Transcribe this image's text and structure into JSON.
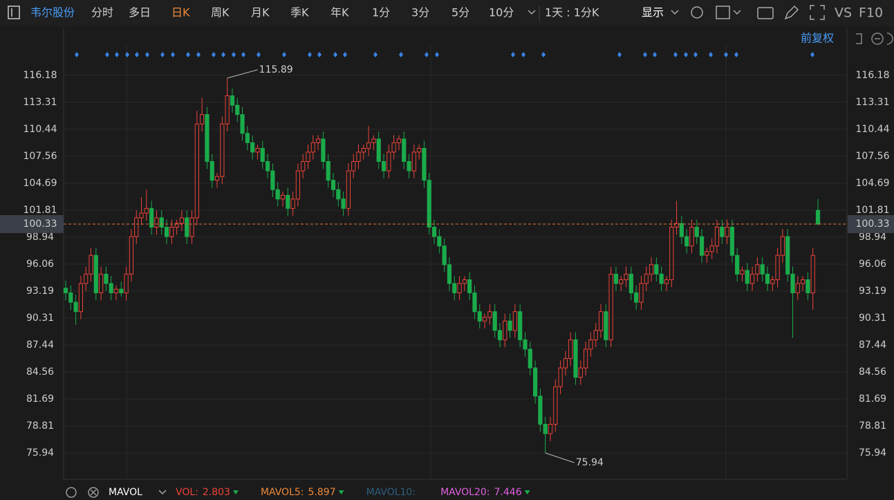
{
  "toolbar": {
    "stock_name": "韦尔股份",
    "tabs": [
      "分时",
      "多日",
      "日K",
      "周K",
      "月K",
      "季K",
      "年K",
      "1分",
      "3分",
      "5分",
      "10分"
    ],
    "active_tab": "日K",
    "period": "1天 : 1分K",
    "display": "显示",
    "vs": "VS",
    "f10": "F10",
    "adjust": "前复权"
  },
  "chart_data": {
    "type": "candlestick",
    "up_color": "#f0433a",
    "down_color": "#1aab4b",
    "ylim": [
      73.14,
      121.26
    ],
    "yticks": [
      75.94,
      78.81,
      81.69,
      84.56,
      87.44,
      90.31,
      93.19,
      96.06,
      98.94,
      101.81,
      104.69,
      107.56,
      110.44,
      113.31,
      116.18
    ],
    "last_price": 100.33,
    "max_label": 115.89,
    "min_label": 75.94,
    "ohlc": [
      [
        93.5,
        94.3,
        92.2,
        93
      ],
      [
        93,
        93.8,
        91.2,
        92
      ],
      [
        92,
        92.8,
        89.6,
        91
      ],
      [
        91,
        94.8,
        90.2,
        94
      ],
      [
        94,
        95.8,
        93.2,
        95
      ],
      [
        95,
        97.8,
        94.2,
        97
      ],
      [
        97,
        97.8,
        92.2,
        93
      ],
      [
        93,
        95.8,
        92.2,
        95
      ],
      [
        95,
        95.8,
        93.2,
        94
      ],
      [
        94,
        94.8,
        92.2,
        93
      ],
      [
        93,
        93.8,
        92.2,
        93.4
      ],
      [
        93.4,
        94.2,
        92.6,
        93
      ],
      [
        93,
        95.8,
        92.2,
        95
      ],
      [
        95,
        99.8,
        94.2,
        99
      ],
      [
        99,
        101.8,
        98.2,
        101
      ],
      [
        101,
        103.2,
        100.2,
        101.5
      ],
      [
        101.5,
        104,
        100.7,
        102
      ],
      [
        102,
        102.8,
        99.2,
        100
      ],
      [
        100,
        101.8,
        99.2,
        101
      ],
      [
        101,
        101.8,
        99.2,
        100
      ],
      [
        100,
        100.8,
        98.2,
        99
      ],
      [
        99,
        100.8,
        98.2,
        100
      ],
      [
        100,
        100.8,
        99.2,
        100.4
      ],
      [
        100.4,
        101.8,
        99.6,
        101
      ],
      [
        101,
        101.8,
        98.2,
        99
      ],
      [
        99,
        101.8,
        98.2,
        101
      ],
      [
        101,
        112.4,
        100.2,
        111
      ],
      [
        111,
        113.8,
        110.2,
        112
      ],
      [
        112,
        112.8,
        106.2,
        107
      ],
      [
        107,
        107.8,
        104.2,
        105
      ],
      [
        105,
        105.8,
        104.2,
        105.4
      ],
      [
        105.4,
        111.8,
        104.6,
        111
      ],
      [
        111,
        115.89,
        110.2,
        114
      ],
      [
        114,
        114.8,
        112.2,
        113
      ],
      [
        113,
        113.8,
        111.2,
        112
      ],
      [
        112,
        112.8,
        109.2,
        110
      ],
      [
        110,
        110.8,
        108.2,
        109
      ],
      [
        109,
        109.8,
        107.2,
        108
      ],
      [
        108,
        108.8,
        107.2,
        108.4
      ],
      [
        108.4,
        109.2,
        106.2,
        107
      ],
      [
        107,
        107.8,
        105.2,
        106
      ],
      [
        106,
        106.8,
        103.2,
        104
      ],
      [
        104,
        104.8,
        102.2,
        103
      ],
      [
        103,
        103.8,
        102.2,
        103.4
      ],
      [
        103.4,
        104.2,
        101.2,
        102
      ],
      [
        102,
        103.8,
        101.2,
        103
      ],
      [
        103,
        106.8,
        102.2,
        106
      ],
      [
        106,
        107.8,
        105.2,
        107
      ],
      [
        107,
        108.8,
        106.2,
        108
      ],
      [
        108,
        109.8,
        107.2,
        109
      ],
      [
        109,
        109.8,
        108.2,
        109.4
      ],
      [
        109.4,
        110.2,
        106.2,
        107
      ],
      [
        107,
        107.8,
        104.2,
        105
      ],
      [
        105,
        105.8,
        103.2,
        104
      ],
      [
        104,
        104.8,
        102.2,
        103
      ],
      [
        103,
        103.8,
        101.2,
        102
      ],
      [
        102,
        106.8,
        101.2,
        106
      ],
      [
        106,
        107.8,
        105.2,
        107
      ],
      [
        107,
        108.8,
        106.2,
        108
      ],
      [
        108,
        108.8,
        107.2,
        108.4
      ],
      [
        108.4,
        110.8,
        107.6,
        109
      ],
      [
        109,
        109.8,
        108.2,
        109.4
      ],
      [
        109.4,
        110.2,
        106.2,
        107
      ],
      [
        107,
        107.8,
        105.2,
        106
      ],
      [
        106,
        108.8,
        105.2,
        108
      ],
      [
        108,
        109.8,
        107.2,
        109
      ],
      [
        109,
        109.8,
        108.2,
        109.4
      ],
      [
        109.4,
        110.2,
        106.2,
        107
      ],
      [
        107,
        107.8,
        105.2,
        106
      ],
      [
        106,
        108.8,
        105.2,
        108
      ],
      [
        108,
        108.8,
        107.2,
        108.4
      ],
      [
        108.4,
        109.2,
        104.2,
        105
      ],
      [
        105,
        105.8,
        99.2,
        100
      ],
      [
        100,
        100.8,
        98.2,
        99
      ],
      [
        99,
        99.8,
        97.2,
        98
      ],
      [
        98,
        98.8,
        95.2,
        96
      ],
      [
        96,
        96.8,
        93.2,
        94
      ],
      [
        94,
        94.8,
        92.2,
        93
      ],
      [
        93,
        94.8,
        92.2,
        94
      ],
      [
        94,
        94.8,
        93.2,
        94.4
      ],
      [
        94.4,
        95.2,
        92.2,
        93
      ],
      [
        93,
        93.8,
        90.2,
        91
      ],
      [
        91,
        91.8,
        89.2,
        90
      ],
      [
        90,
        90.8,
        89.2,
        90.4
      ],
      [
        90.4,
        91.8,
        89.6,
        91
      ],
      [
        91,
        91.8,
        88.2,
        89
      ],
      [
        89,
        89.8,
        87.2,
        88
      ],
      [
        88,
        90.8,
        87.2,
        90
      ],
      [
        90,
        90.8,
        88.2,
        89
      ],
      [
        89,
        91.8,
        88.2,
        91
      ],
      [
        91,
        91.8,
        87.2,
        88
      ],
      [
        88,
        88.8,
        86.2,
        87
      ],
      [
        87,
        87.8,
        84.2,
        85
      ],
      [
        85,
        85.8,
        81.2,
        82
      ],
      [
        82,
        82.8,
        78.2,
        79
      ],
      [
        79,
        79.8,
        75.94,
        78
      ],
      [
        78,
        79.8,
        77.2,
        79
      ],
      [
        79,
        83.8,
        78.2,
        83
      ],
      [
        83,
        85.8,
        82.2,
        85
      ],
      [
        85,
        86.8,
        84.2,
        86
      ],
      [
        86,
        88.8,
        85.2,
        88
      ],
      [
        88,
        88.8,
        83.2,
        84
      ],
      [
        84,
        85.8,
        83.2,
        85
      ],
      [
        85,
        87.8,
        84.2,
        87
      ],
      [
        87,
        88.8,
        86.2,
        88
      ],
      [
        88,
        89.8,
        87.2,
        89
      ],
      [
        89,
        91.8,
        88.2,
        91
      ],
      [
        91,
        91.8,
        87.2,
        88
      ],
      [
        88,
        95.8,
        87.2,
        95
      ],
      [
        95,
        95.8,
        93.2,
        94
      ],
      [
        94,
        94.8,
        93.2,
        94.4
      ],
      [
        94.4,
        95.8,
        93.6,
        95
      ],
      [
        95,
        95.8,
        92.2,
        93
      ],
      [
        93,
        93.8,
        91.2,
        92
      ],
      [
        92,
        94.8,
        91.2,
        94
      ],
      [
        94,
        95.8,
        93.2,
        95
      ],
      [
        95,
        96.8,
        94.2,
        96
      ],
      [
        96,
        96.8,
        94.2,
        95
      ],
      [
        95,
        95.8,
        93.2,
        94
      ],
      [
        94,
        94.8,
        93.2,
        94.4
      ],
      [
        94.4,
        100.8,
        93.6,
        100
      ],
      [
        100,
        102.8,
        99.2,
        100.4
      ],
      [
        100.4,
        101.2,
        98.2,
        99
      ],
      [
        99,
        99.8,
        97.2,
        98
      ],
      [
        98,
        100.8,
        97.2,
        100
      ],
      [
        100,
        100.8,
        98.2,
        99
      ],
      [
        99,
        99.8,
        96.2,
        97
      ],
      [
        97,
        97.8,
        96.2,
        97.4
      ],
      [
        97.4,
        98.8,
        96.6,
        98
      ],
      [
        98,
        100.8,
        97.2,
        100
      ],
      [
        100,
        100.8,
        98.2,
        99
      ],
      [
        99,
        100.8,
        98.2,
        100
      ],
      [
        100,
        100.8,
        96.2,
        97
      ],
      [
        97,
        97.8,
        94.2,
        95
      ],
      [
        95,
        95.8,
        94.2,
        95.4
      ],
      [
        95.4,
        96.2,
        93.2,
        94
      ],
      [
        94,
        95.8,
        93.2,
        95
      ],
      [
        95,
        96.8,
        94.2,
        96
      ],
      [
        96,
        96.8,
        94.2,
        95
      ],
      [
        95,
        95.8,
        93.2,
        94
      ],
      [
        94,
        94.8,
        93.2,
        94.4
      ],
      [
        94.4,
        97.8,
        93.6,
        97
      ],
      [
        97,
        99.8,
        96.2,
        99
      ],
      [
        99,
        99.8,
        94.2,
        95
      ],
      [
        95,
        95.8,
        88.2,
        93
      ],
      [
        93,
        94.8,
        92.2,
        94
      ],
      [
        94,
        94.8,
        93.2,
        94.4
      ],
      [
        94.4,
        95.2,
        92.2,
        93
      ],
      [
        93,
        97.8,
        91.2,
        97
      ],
      [
        101.8,
        103,
        100.2,
        100.33
      ]
    ],
    "indicator": "MAVOL",
    "indicators": [
      {
        "name": "VOL:",
        "value": 2.803,
        "color": "#f0433a"
      },
      {
        "name": "MAVOL5:",
        "value": 5.897,
        "color": "#f08a3a"
      },
      {
        "name": "MAVOL10:",
        "color": "#2e5f80"
      },
      {
        "name": "MAVOL20:",
        "value": 7.446,
        "color": "#e060e0"
      }
    ]
  }
}
